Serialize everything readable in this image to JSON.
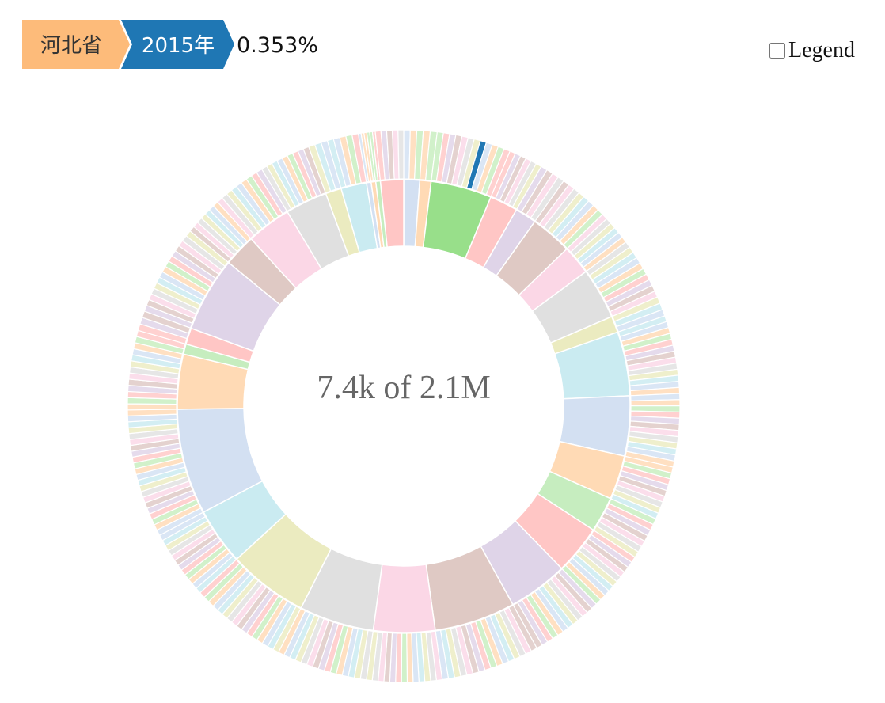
{
  "breadcrumb": {
    "items": [
      {
        "label": "河北省",
        "color": "#fdbb7a"
      },
      {
        "label": "2015年",
        "color": "#1f77b4"
      }
    ],
    "percentage": "0.353%"
  },
  "legend_toggle": {
    "label": "Legend",
    "checked": false
  },
  "center_text": "7.4k of 2.1M",
  "chart_data": {
    "type": "sunburst",
    "title": "",
    "center_label": "7.4k of 2.1M",
    "selected_path": [
      "河北省",
      "2015年"
    ],
    "selected_share_percent": 0.353,
    "palette": [
      "#aec7e8",
      "#ffbb78",
      "#98df8a",
      "#ff9896",
      "#c5b0d5",
      "#c49c94",
      "#f7b6d2",
      "#c7c7c7",
      "#dbdb8d",
      "#9edae5"
    ],
    "rings": [
      {
        "level": "province",
        "note": "labels not printed in screenshot",
        "values": [
          1.55,
          1.1,
          5.95,
          2.75,
          2.1,
          4.05,
          2.85,
          5.0,
          1.6,
          6.25,
          5.85,
          4.3,
          3.45,
          4.8,
          5.85,
          7.9,
          6.0,
          7.3,
          7.8,
          5.55,
          10.3,
          5.35,
          1.0,
          1.6,
          7.3,
          3.15,
          4.35,
          4.1,
          1.55,
          2.5,
          0.45,
          0.45,
          0.45,
          2.25
        ]
      },
      {
        "level": "year",
        "note": "per-year slices per province; highlighted slice = 2015年"
      }
    ]
  }
}
